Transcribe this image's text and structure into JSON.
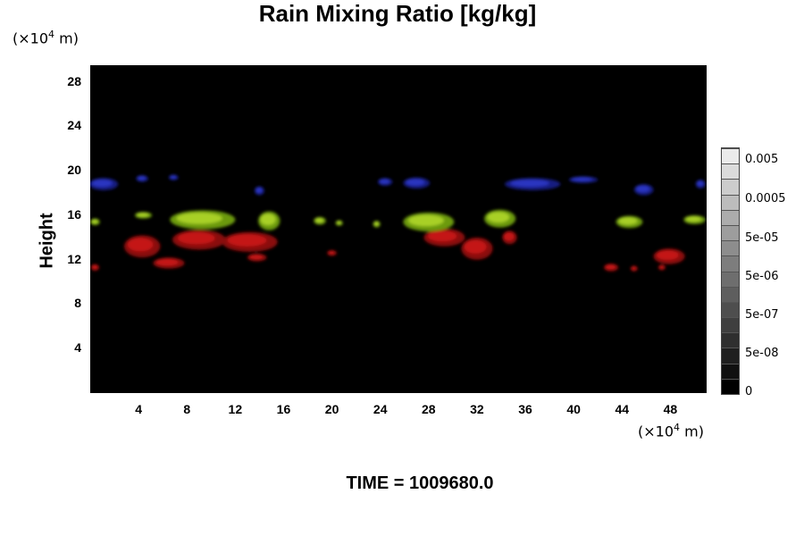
{
  "title": "Rain Mixing Ratio [kg/kg]",
  "y_unit_prefix": "(×10",
  "y_unit_exp": "4",
  "y_unit_suffix": " m)",
  "x_unit_prefix": "(×10",
  "x_unit_exp": "4",
  "x_unit_suffix": " m)",
  "time_label": "TIME = 1009680.0",
  "colors": {
    "background": "#000000",
    "red": "#b01010",
    "green": "#8fc020",
    "blue": "#1a22a0"
  },
  "chart_data": {
    "type": "heatmap",
    "title": "Rain Mixing Ratio [kg/kg]",
    "xlabel": "",
    "ylabel": "Height",
    "xlim": [
      0,
      51
    ],
    "ylim": [
      0,
      29.5
    ],
    "x_ticks": [
      "4",
      "8",
      "12",
      "16",
      "20",
      "24",
      "28",
      "32",
      "36",
      "40",
      "44",
      "48"
    ],
    "y_ticks": [
      "4",
      "8",
      "12",
      "16",
      "20",
      "24",
      "28"
    ],
    "colorbar_ticks": [
      "0",
      "5e-08",
      "5e-07",
      "5e-06",
      "5e-05",
      "0.0005",
      "0.005"
    ],
    "colorbar_levels": 16,
    "blobs": [
      {
        "color": "red",
        "cx": 4.3,
        "cy": 13.2,
        "rx": 1.5,
        "ry": 1.0
      },
      {
        "color": "red",
        "cx": 6.5,
        "cy": 11.7,
        "rx": 1.3,
        "ry": 0.5
      },
      {
        "color": "red",
        "cx": 9.0,
        "cy": 13.8,
        "rx": 2.2,
        "ry": 0.9
      },
      {
        "color": "red",
        "cx": 13.2,
        "cy": 13.6,
        "rx": 2.3,
        "ry": 0.9
      },
      {
        "color": "red",
        "cx": 13.8,
        "cy": 12.2,
        "rx": 0.8,
        "ry": 0.35
      },
      {
        "color": "red",
        "cx": 20.0,
        "cy": 12.6,
        "rx": 0.4,
        "ry": 0.25
      },
      {
        "color": "red",
        "cx": 29.3,
        "cy": 14.0,
        "rx": 1.7,
        "ry": 0.8
      },
      {
        "color": "red",
        "cx": 32.0,
        "cy": 13.0,
        "rx": 1.3,
        "ry": 1.0
      },
      {
        "color": "red",
        "cx": 34.7,
        "cy": 14.0,
        "rx": 0.6,
        "ry": 0.6
      },
      {
        "color": "red",
        "cx": 0.4,
        "cy": 11.3,
        "rx": 0.35,
        "ry": 0.3
      },
      {
        "color": "red",
        "cx": 43.1,
        "cy": 11.3,
        "rx": 0.6,
        "ry": 0.35
      },
      {
        "color": "red",
        "cx": 45.0,
        "cy": 11.2,
        "rx": 0.3,
        "ry": 0.25
      },
      {
        "color": "red",
        "cx": 47.9,
        "cy": 12.3,
        "rx": 1.3,
        "ry": 0.7
      },
      {
        "color": "red",
        "cx": 47.3,
        "cy": 11.3,
        "rx": 0.3,
        "ry": 0.25
      },
      {
        "color": "green",
        "cx": 9.3,
        "cy": 15.6,
        "rx": 2.7,
        "ry": 0.85
      },
      {
        "color": "green",
        "cx": 14.8,
        "cy": 15.5,
        "rx": 0.9,
        "ry": 0.85
      },
      {
        "color": "green",
        "cx": 4.4,
        "cy": 16.0,
        "rx": 0.7,
        "ry": 0.3
      },
      {
        "color": "green",
        "cx": 19.0,
        "cy": 15.5,
        "rx": 0.5,
        "ry": 0.35
      },
      {
        "color": "green",
        "cx": 20.6,
        "cy": 15.3,
        "rx": 0.3,
        "ry": 0.25
      },
      {
        "color": "green",
        "cx": 23.7,
        "cy": 15.2,
        "rx": 0.3,
        "ry": 0.3
      },
      {
        "color": "green",
        "cx": 28.0,
        "cy": 15.4,
        "rx": 2.1,
        "ry": 0.85
      },
      {
        "color": "green",
        "cx": 33.9,
        "cy": 15.7,
        "rx": 1.3,
        "ry": 0.8
      },
      {
        "color": "green",
        "cx": 0.4,
        "cy": 15.4,
        "rx": 0.4,
        "ry": 0.3
      },
      {
        "color": "green",
        "cx": 44.6,
        "cy": 15.4,
        "rx": 1.1,
        "ry": 0.55
      },
      {
        "color": "green",
        "cx": 50.0,
        "cy": 15.6,
        "rx": 0.9,
        "ry": 0.4
      },
      {
        "color": "blue",
        "cx": 1.1,
        "cy": 18.8,
        "rx": 1.2,
        "ry": 0.55
      },
      {
        "color": "blue",
        "cx": 4.3,
        "cy": 19.3,
        "rx": 0.5,
        "ry": 0.3
      },
      {
        "color": "blue",
        "cx": 6.9,
        "cy": 19.4,
        "rx": 0.4,
        "ry": 0.25
      },
      {
        "color": "blue",
        "cx": 14.0,
        "cy": 18.2,
        "rx": 0.4,
        "ry": 0.4
      },
      {
        "color": "blue",
        "cx": 24.4,
        "cy": 19.0,
        "rx": 0.6,
        "ry": 0.35
      },
      {
        "color": "blue",
        "cx": 27.0,
        "cy": 18.9,
        "rx": 1.1,
        "ry": 0.5
      },
      {
        "color": "blue",
        "cx": 36.6,
        "cy": 18.8,
        "rx": 2.3,
        "ry": 0.55
      },
      {
        "color": "blue",
        "cx": 40.8,
        "cy": 19.2,
        "rx": 1.2,
        "ry": 0.3
      },
      {
        "color": "blue",
        "cx": 45.8,
        "cy": 18.3,
        "rx": 0.8,
        "ry": 0.5
      },
      {
        "color": "blue",
        "cx": 50.5,
        "cy": 18.8,
        "rx": 0.4,
        "ry": 0.4
      }
    ]
  }
}
